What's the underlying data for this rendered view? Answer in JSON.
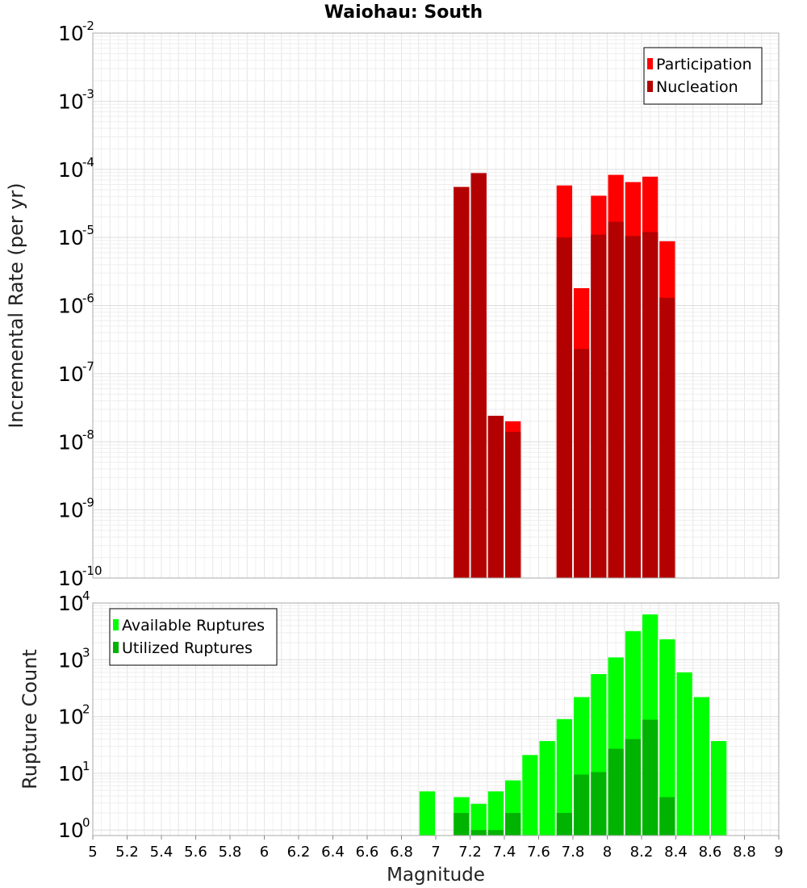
{
  "chart_data": [
    {
      "type": "bar",
      "title": "Waiohau: South",
      "ylabel": "Incremental Rate (per yr)",
      "xlim": [
        5,
        9
      ],
      "ylim_exponents": [
        -10,
        -2
      ],
      "y_scale": "log",
      "y_tick_exponents": [
        "-10",
        "-9",
        "-8",
        "-7",
        "-6",
        "-5",
        "-4",
        "-3",
        "-2"
      ],
      "legend_position": "top-right",
      "grid": true,
      "series": [
        {
          "name": "Participation",
          "color": "#ff0000",
          "points": [
            {
              "x": 7.15,
              "y": 5.5e-05
            },
            {
              "x": 7.25,
              "y": 8.8e-05
            },
            {
              "x": 7.35,
              "y": 2.4e-08
            },
            {
              "x": 7.45,
              "y": 2e-08
            },
            {
              "x": 7.75,
              "y": 5.8e-05
            },
            {
              "x": 7.85,
              "y": 1.8e-06
            },
            {
              "x": 7.95,
              "y": 4.1e-05
            },
            {
              "x": 8.05,
              "y": 8.3e-05
            },
            {
              "x": 8.15,
              "y": 6.5e-05
            },
            {
              "x": 8.25,
              "y": 7.8e-05
            },
            {
              "x": 8.35,
              "y": 8.8e-06
            }
          ]
        },
        {
          "name": "Nucleation",
          "color": "#b30000",
          "points": [
            {
              "x": 7.15,
              "y": 5.5e-05
            },
            {
              "x": 7.25,
              "y": 8.8e-05
            },
            {
              "x": 7.35,
              "y": 2.4e-08
            },
            {
              "x": 7.45,
              "y": 1.4e-08
            },
            {
              "x": 7.75,
              "y": 1e-05
            },
            {
              "x": 7.85,
              "y": 2.3e-07
            },
            {
              "x": 7.95,
              "y": 1.1e-05
            },
            {
              "x": 8.05,
              "y": 1.7e-05
            },
            {
              "x": 8.15,
              "y": 1.05e-05
            },
            {
              "x": 8.25,
              "y": 1.2e-05
            },
            {
              "x": 8.35,
              "y": 1.3e-06
            }
          ]
        }
      ]
    },
    {
      "type": "bar",
      "ylabel": "Rupture Count",
      "xlabel": "Magnitude",
      "xlim": [
        5,
        9
      ],
      "ylim": [
        0.8,
        10000
      ],
      "y_scale": "log",
      "y_tick_exponents": [
        "0",
        "1",
        "2",
        "3",
        "4"
      ],
      "x_ticks": [
        "5",
        "5.2",
        "5.4",
        "5.6",
        "5.8",
        "6",
        "6.2",
        "6.4",
        "6.6",
        "6.8",
        "7",
        "7.2",
        "7.4",
        "7.6",
        "7.8",
        "8",
        "8.2",
        "8.4",
        "8.6",
        "8.8",
        "9"
      ],
      "legend_position": "top-left",
      "grid": true,
      "series": [
        {
          "name": "Available Ruptures",
          "color": "#00ff00",
          "points": [
            {
              "x": 6.95,
              "y": 4.8
            },
            {
              "x": 7.15,
              "y": 3.8
            },
            {
              "x": 7.25,
              "y": 2.9
            },
            {
              "x": 7.35,
              "y": 4.8
            },
            {
              "x": 7.45,
              "y": 7.5
            },
            {
              "x": 7.55,
              "y": 21
            },
            {
              "x": 7.65,
              "y": 37
            },
            {
              "x": 7.75,
              "y": 90
            },
            {
              "x": 7.85,
              "y": 220
            },
            {
              "x": 7.95,
              "y": 560
            },
            {
              "x": 8.05,
              "y": 1100
            },
            {
              "x": 8.15,
              "y": 3200
            },
            {
              "x": 8.25,
              "y": 6300
            },
            {
              "x": 8.35,
              "y": 2300
            },
            {
              "x": 8.45,
              "y": 600
            },
            {
              "x": 8.55,
              "y": 220
            },
            {
              "x": 8.65,
              "y": 37
            }
          ]
        },
        {
          "name": "Utilized Ruptures",
          "color": "#00b300",
          "points": [
            {
              "x": 7.15,
              "y": 2
            },
            {
              "x": 7.25,
              "y": 1
            },
            {
              "x": 7.35,
              "y": 1
            },
            {
              "x": 7.45,
              "y": 2
            },
            {
              "x": 7.75,
              "y": 2
            },
            {
              "x": 7.85,
              "y": 9.5
            },
            {
              "x": 7.95,
              "y": 10.5
            },
            {
              "x": 8.05,
              "y": 27
            },
            {
              "x": 8.15,
              "y": 40
            },
            {
              "x": 8.25,
              "y": 88
            },
            {
              "x": 8.35,
              "y": 3.8
            }
          ]
        }
      ]
    }
  ]
}
